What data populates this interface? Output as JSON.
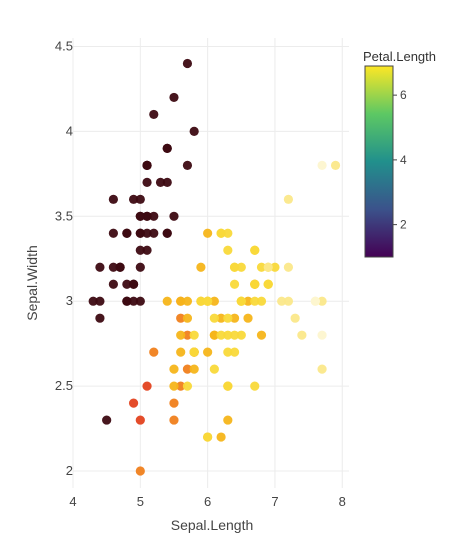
{
  "chart_data": {
    "type": "scatter",
    "xlabel": "Sepal.Length",
    "ylabel": "Sepal.Width",
    "xlim": [
      4,
      8.1
    ],
    "ylim": [
      1.9,
      4.55
    ],
    "x_ticks": [
      "4",
      "5",
      "6",
      "7",
      "8"
    ],
    "y_ticks": [
      "2",
      "2.5",
      "3",
      "3.5",
      "4",
      "4.5"
    ],
    "grid": true,
    "colorbar": {
      "title": "Petal.Length",
      "range": [
        1,
        6.9
      ],
      "ticks": [
        "2",
        "4",
        "6"
      ],
      "colors": [
        "#440154",
        "#3b528b",
        "#21908c",
        "#5dc863",
        "#fde725"
      ]
    },
    "point_colors": {
      "dark": "#3d0a12",
      "red": "#e3421f",
      "orange": "#f07f1c",
      "gold": "#f6b51a",
      "yellow": "#f9d93a",
      "cream": "#fbe88a",
      "pale": "#fdf5cf"
    },
    "series": [
      {
        "color_key": "dark",
        "points": [
          [
            5.1,
            3.5
          ],
          [
            4.9,
            3.0
          ],
          [
            4.7,
            3.2
          ],
          [
            4.6,
            3.1
          ],
          [
            5.0,
            3.6
          ],
          [
            5.4,
            3.9
          ],
          [
            4.6,
            3.4
          ],
          [
            5.0,
            3.4
          ],
          [
            4.4,
            2.9
          ],
          [
            4.9,
            3.1
          ],
          [
            5.4,
            3.7
          ],
          [
            4.8,
            3.4
          ],
          [
            4.8,
            3.0
          ],
          [
            4.3,
            3.0
          ],
          [
            5.8,
            4.0
          ],
          [
            5.7,
            4.4
          ],
          [
            5.4,
            3.9
          ],
          [
            5.1,
            3.5
          ],
          [
            5.7,
            3.8
          ],
          [
            5.1,
            3.8
          ],
          [
            5.4,
            3.4
          ],
          [
            5.1,
            3.7
          ],
          [
            4.6,
            3.6
          ],
          [
            5.1,
            3.3
          ],
          [
            4.8,
            3.4
          ],
          [
            5.0,
            3.0
          ],
          [
            5.0,
            3.4
          ],
          [
            5.2,
            3.5
          ],
          [
            5.2,
            3.4
          ],
          [
            4.7,
            3.2
          ],
          [
            4.8,
            3.1
          ],
          [
            5.4,
            3.4
          ],
          [
            5.2,
            4.1
          ],
          [
            5.5,
            4.2
          ],
          [
            4.9,
            3.1
          ],
          [
            5.0,
            3.2
          ],
          [
            5.5,
            3.5
          ],
          [
            4.9,
            3.6
          ],
          [
            4.4,
            3.0
          ],
          [
            5.1,
            3.4
          ],
          [
            5.0,
            3.5
          ],
          [
            4.5,
            2.3
          ],
          [
            4.4,
            3.2
          ],
          [
            5.0,
            3.5
          ],
          [
            5.1,
            3.8
          ],
          [
            4.8,
            3.0
          ],
          [
            5.1,
            3.8
          ],
          [
            4.6,
            3.2
          ],
          [
            5.3,
            3.7
          ],
          [
            5.0,
            3.3
          ]
        ]
      },
      {
        "color_key": "red",
        "points": [
          [
            5.1,
            2.5
          ],
          [
            4.9,
            2.4
          ],
          [
            5.0,
            2.3
          ]
        ]
      },
      {
        "color_key": "orange",
        "points": [
          [
            5.0,
            2.0
          ],
          [
            5.2,
            2.7
          ],
          [
            5.6,
            2.5
          ],
          [
            5.7,
            2.6
          ],
          [
            5.8,
            2.7
          ],
          [
            5.5,
            2.4
          ],
          [
            5.7,
            2.8
          ],
          [
            5.6,
            2.9
          ],
          [
            5.5,
            2.3
          ],
          [
            5.6,
            3.0
          ]
        ]
      },
      {
        "color_key": "gold",
        "points": [
          [
            5.6,
            3.0
          ],
          [
            5.7,
            3.0
          ],
          [
            6.0,
            2.2
          ],
          [
            5.5,
            2.5
          ],
          [
            5.8,
            2.6
          ],
          [
            5.6,
            2.7
          ],
          [
            6.1,
            2.8
          ],
          [
            5.7,
            2.9
          ],
          [
            6.0,
            3.0
          ],
          [
            5.9,
            3.0
          ],
          [
            6.1,
            2.8
          ],
          [
            6.4,
            2.9
          ],
          [
            6.6,
            3.0
          ],
          [
            6.2,
            2.2
          ],
          [
            5.8,
            2.7
          ],
          [
            5.6,
            2.8
          ],
          [
            5.9,
            3.2
          ],
          [
            6.0,
            2.7
          ],
          [
            5.5,
            2.6
          ],
          [
            5.8,
            2.7
          ],
          [
            6.3,
            2.5
          ],
          [
            6.7,
            3.1
          ],
          [
            6.3,
            2.3
          ],
          [
            6.1,
            3.0
          ],
          [
            6.2,
            2.9
          ],
          [
            5.4,
            3.0
          ],
          [
            6.0,
            3.4
          ],
          [
            6.7,
            3.1
          ],
          [
            6.8,
            2.8
          ],
          [
            6.6,
            2.9
          ]
        ]
      },
      {
        "color_key": "yellow",
        "points": [
          [
            7.0,
            3.2
          ],
          [
            6.4,
            3.2
          ],
          [
            6.9,
            3.1
          ],
          [
            6.5,
            2.8
          ],
          [
            6.3,
            3.3
          ],
          [
            6.7,
            3.0
          ],
          [
            6.3,
            2.5
          ],
          [
            6.5,
            3.0
          ],
          [
            6.2,
            3.4
          ],
          [
            5.9,
            3.0
          ],
          [
            6.1,
            2.6
          ],
          [
            6.4,
            2.8
          ],
          [
            6.3,
            2.7
          ],
          [
            6.4,
            3.1
          ],
          [
            6.0,
            3.0
          ],
          [
            6.9,
            3.1
          ],
          [
            6.7,
            3.3
          ],
          [
            6.5,
            3.0
          ],
          [
            6.8,
            3.2
          ],
          [
            5.8,
            2.8
          ],
          [
            6.4,
            2.7
          ],
          [
            6.5,
            3.2
          ],
          [
            6.3,
            2.9
          ],
          [
            6.2,
            2.8
          ],
          [
            6.8,
            3.0
          ],
          [
            6.1,
            2.9
          ],
          [
            5.8,
            2.7
          ],
          [
            6.0,
            2.2
          ],
          [
            5.7,
            2.5
          ],
          [
            6.9,
            3.2
          ],
          [
            6.3,
            2.8
          ],
          [
            6.4,
            3.2
          ],
          [
            6.3,
            3.4
          ],
          [
            6.0,
            3.0
          ],
          [
            6.9,
            3.1
          ],
          [
            6.7,
            3.1
          ],
          [
            6.7,
            2.5
          ],
          [
            6.5,
            3.0
          ],
          [
            6.2,
            3.4
          ],
          [
            6.7,
            3.3
          ]
        ]
      },
      {
        "color_key": "cream",
        "points": [
          [
            7.2,
            3.6
          ],
          [
            7.1,
            3.0
          ],
          [
            7.3,
            2.9
          ],
          [
            7.2,
            3.2
          ],
          [
            7.2,
            3.0
          ],
          [
            7.7,
            3.0
          ],
          [
            6.9,
            3.2
          ],
          [
            7.4,
            2.8
          ],
          [
            7.9,
            3.8
          ],
          [
            7.7,
            2.6
          ]
        ]
      },
      {
        "color_key": "pale",
        "points": [
          [
            7.6,
            3.0
          ],
          [
            7.7,
            3.8
          ],
          [
            7.7,
            2.8
          ],
          [
            7.6,
            3.0
          ]
        ]
      }
    ]
  }
}
